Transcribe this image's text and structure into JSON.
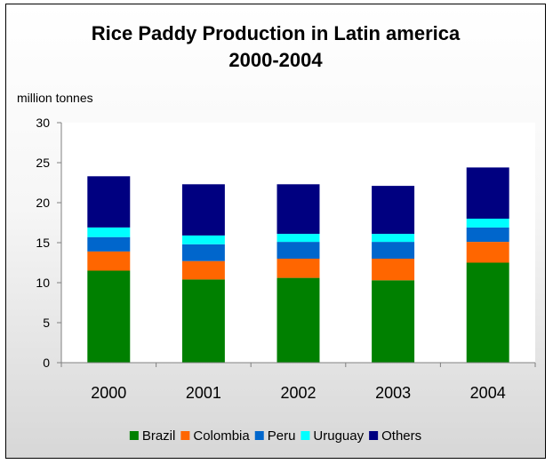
{
  "chart_data": {
    "type": "bar",
    "stacked": true,
    "title_line1": "Rice Paddy Production in Latin america",
    "title_line2": "2000-2004",
    "ylabel": "million tonnes",
    "xlabel": "",
    "ylim": [
      0,
      30
    ],
    "yticks": [
      "0",
      "5",
      "10",
      "15",
      "20",
      "25",
      "30"
    ],
    "categories": [
      "2000",
      "2001",
      "2002",
      "2003",
      "2004"
    ],
    "series": [
      {
        "name": "Brazil",
        "color": "#008000",
        "values": [
          11.5,
          10.4,
          10.6,
          10.3,
          12.5
        ]
      },
      {
        "name": "Colombia",
        "color": "#ff6600",
        "values": [
          2.4,
          2.3,
          2.4,
          2.7,
          2.6
        ]
      },
      {
        "name": "Peru",
        "color": "#0066cc",
        "values": [
          1.8,
          2.1,
          2.1,
          2.1,
          1.8
        ]
      },
      {
        "name": "Uruguay",
        "color": "#00ffff",
        "values": [
          1.2,
          1.1,
          1.0,
          1.0,
          1.1
        ]
      },
      {
        "name": "Others",
        "color": "#000080",
        "values": [
          6.4,
          6.4,
          6.2,
          6.0,
          6.4
        ]
      }
    ],
    "grid": false,
    "legend_position": "bottom"
  }
}
